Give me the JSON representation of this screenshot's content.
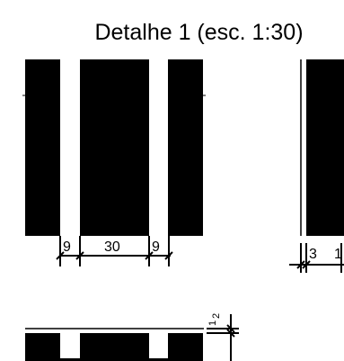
{
  "drawing": {
    "title": "Detalhe 1 (esc. 1:30)",
    "front_view": {
      "dimensions": [
        "9",
        "30",
        "9"
      ]
    },
    "side_view": {
      "dimensions": [
        "3",
        "1"
      ]
    },
    "plan_view": {
      "dimensions": [
        "1",
        "2"
      ]
    },
    "colors": {
      "ink": "#000000",
      "paper": "#ffffff"
    }
  }
}
